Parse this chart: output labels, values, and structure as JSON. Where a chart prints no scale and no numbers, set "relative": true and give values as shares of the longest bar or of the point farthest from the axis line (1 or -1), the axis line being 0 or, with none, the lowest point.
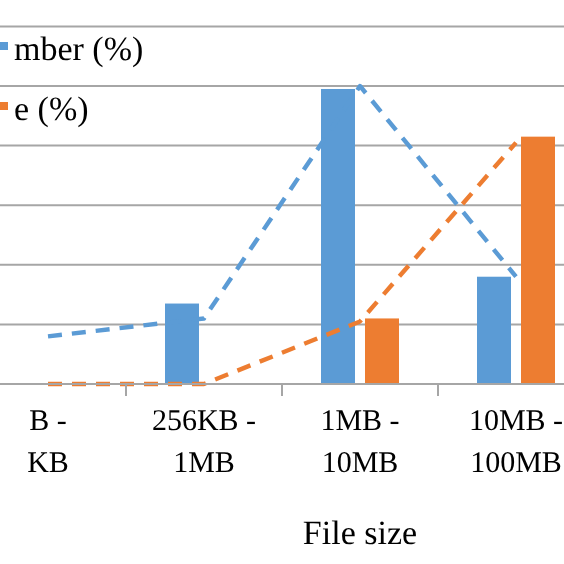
{
  "chart_data": {
    "type": "bar",
    "relative": true,
    "xlabel": "File size",
    "categories": [
      "B - KB",
      "256KB - 1MB",
      "1MB - 10MB",
      "10MB - 100MB"
    ],
    "grid": "y",
    "legend": "top left",
    "series": [
      {
        "name": "mber (%)",
        "color": "#5b9bd5",
        "values": [
          null,
          0.27,
          0.99,
          0.36
        ]
      },
      {
        "name": "e (%)",
        "color": "#ed7d31",
        "values": [
          null,
          0,
          0.22,
          0.83
        ]
      },
      {
        "type": "line",
        "color": "#5b9bd5",
        "line_style": "dashed",
        "values": [
          0.16,
          0.22,
          1,
          0.36
        ]
      },
      {
        "type": "line",
        "color": "#ed7d31",
        "line_style": "dashed",
        "values": [
          0,
          0,
          0.21,
          0.81
        ]
      }
    ]
  }
}
